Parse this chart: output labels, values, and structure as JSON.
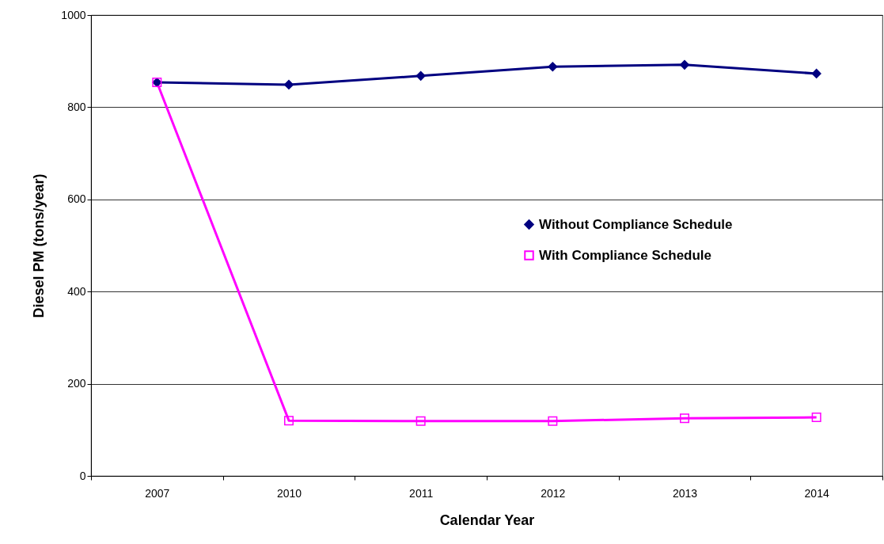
{
  "chart_data": {
    "type": "line",
    "xlabel": "Calendar Year",
    "ylabel": "Diesel PM (tons/year)",
    "categories": [
      "2007",
      "2010",
      "2011",
      "2012",
      "2013",
      "2014"
    ],
    "series": [
      {
        "name": "Without Compliance Schedule",
        "color": "#000080",
        "marker": "diamond",
        "values": [
          854,
          849,
          868,
          888,
          892,
          873
        ]
      },
      {
        "name": "With Compliance Schedule",
        "color": "#ff00ff",
        "marker": "square",
        "values": [
          854,
          120,
          119,
          119,
          125,
          127
        ]
      }
    ],
    "ylim": [
      0,
      1000
    ],
    "yticks": [
      0,
      200,
      400,
      600,
      800,
      1000
    ],
    "grid": "y",
    "legend": "right",
    "line_style": "solid"
  }
}
